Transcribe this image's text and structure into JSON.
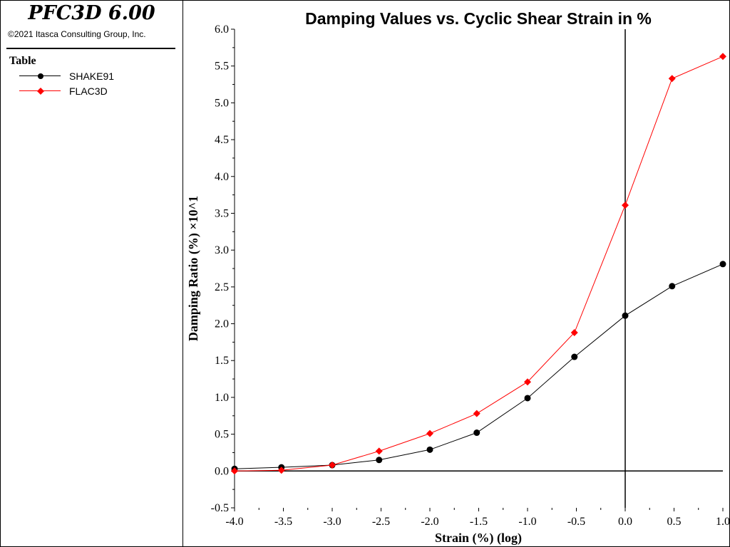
{
  "app": {
    "title": "PFC3D 6.00",
    "copyright": "©2021 Itasca Consulting Group, Inc."
  },
  "legend": {
    "title": "Table",
    "items": [
      {
        "label": "SHAKE91",
        "color": "#000000",
        "marker": "circle"
      },
      {
        "label": "FLAC3D",
        "color": "#ff0000",
        "marker": "diamond"
      }
    ]
  },
  "chart_data": {
    "type": "line",
    "title": "Damping Values vs. Cyclic Shear Strain in %",
    "xlabel": "Strain (%) (log)",
    "ylabel": "Damping Ratio (%) ×10^1",
    "xlim": [
      -4.0,
      1.0
    ],
    "ylim": [
      -0.5,
      6.0
    ],
    "xticks": [
      "-4.0",
      "-3.5",
      "-3.0",
      "-2.5",
      "-2.0",
      "-1.5",
      "-1.0",
      "-0.5",
      "0.0",
      "0.5",
      "1.0"
    ],
    "yticks": [
      "-0.5",
      "0.0",
      "0.5",
      "1.0",
      "1.5",
      "2.0",
      "2.5",
      "3.0",
      "3.5",
      "4.0",
      "4.5",
      "5.0",
      "5.5",
      "6.0"
    ],
    "grid": false,
    "series": [
      {
        "name": "SHAKE91",
        "color": "#000000",
        "marker": "circle",
        "x": [
          -4.0,
          -3.52,
          -3.0,
          -2.52,
          -2.0,
          -1.52,
          -1.0,
          -0.52,
          0.0,
          0.48,
          1.0
        ],
        "y": [
          0.03,
          0.05,
          0.08,
          0.15,
          0.29,
          0.52,
          0.99,
          1.55,
          2.11,
          2.51,
          2.81
        ]
      },
      {
        "name": "FLAC3D",
        "color": "#ff0000",
        "marker": "diamond",
        "x": [
          -4.0,
          -3.52,
          -3.0,
          -2.52,
          -2.0,
          -1.52,
          -1.0,
          -0.52,
          0.0,
          0.48,
          1.0
        ],
        "y": [
          0.0,
          0.01,
          0.08,
          0.27,
          0.51,
          0.78,
          1.21,
          1.88,
          3.61,
          5.33,
          5.63
        ]
      }
    ]
  }
}
